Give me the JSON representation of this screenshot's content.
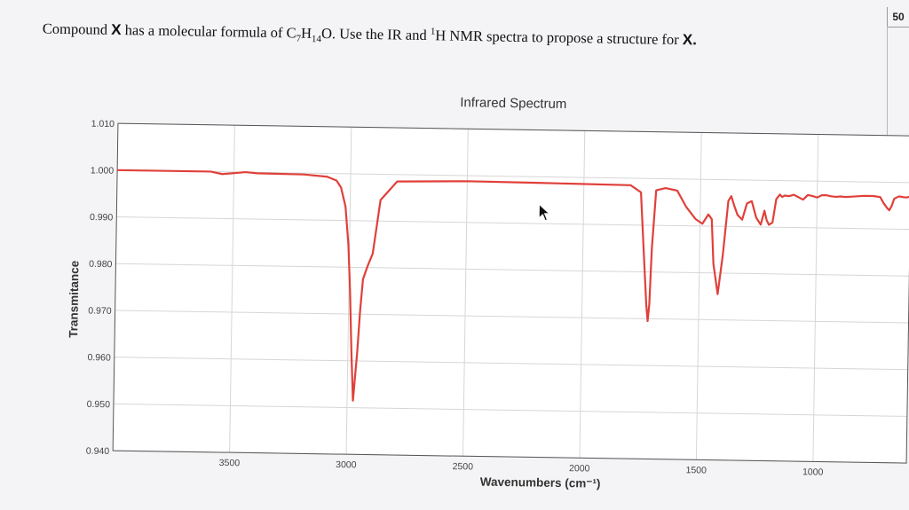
{
  "page_badge": "50",
  "question": {
    "prefix": "Compound ",
    "compound_letter": "X",
    "mid": " has a molecular formula of C",
    "sub1": "7",
    "h": "H",
    "sub2": "14",
    "o_text": "O. Use the IR and ",
    "sup": "1",
    "rest": "H NMR spectra to propose a structure for ",
    "end_letter": "X",
    "period": "."
  },
  "chart_data": {
    "type": "line",
    "title": "Infrared Spectrum",
    "xlabel": "Wavenumbers (cm⁻¹)",
    "ylabel": "Transmitance",
    "xlim": [
      4000,
      600
    ],
    "ylim": [
      0.94,
      1.01
    ],
    "x_ticks": [
      3500,
      3000,
      2500,
      2000,
      1500,
      1000
    ],
    "y_ticks": [
      0.94,
      0.95,
      0.96,
      0.97,
      0.98,
      0.99,
      1.0,
      1.01
    ],
    "y_tick_labels": [
      "0.940",
      "0.950",
      "0.960",
      "0.970",
      "0.980",
      "0.990",
      "1.000",
      "1.010"
    ],
    "grid": true,
    "line_color": "#e0403a",
    "series": [
      {
        "x": [
          4000,
          3600,
          3550,
          3450,
          3400,
          3200,
          3100,
          3060,
          3040,
          3020,
          3005,
          2995,
          2985,
          2975,
          2960,
          2950,
          2940,
          2920,
          2900,
          2870,
          2800,
          2500,
          2200,
          1800,
          1755,
          1740,
          1725,
          1718,
          1712,
          1705,
          1690,
          1650,
          1600,
          1560,
          1520,
          1490,
          1465,
          1450,
          1440,
          1420,
          1400,
          1380,
          1368,
          1355,
          1340,
          1320,
          1300,
          1280,
          1260,
          1240,
          1225,
          1215,
          1205,
          1190,
          1175,
          1160,
          1150,
          1140,
          1120,
          1100,
          1080,
          1060,
          1040,
          1020,
          1000,
          980,
          960,
          940,
          920,
          900,
          880,
          850,
          800,
          760,
          730,
          715,
          700,
          690,
          680,
          670,
          650,
          620,
          600
        ],
        "y": [
          1.0,
          1.0,
          0.9995,
          1.0,
          0.9998,
          0.9997,
          0.9993,
          0.9985,
          0.997,
          0.993,
          0.985,
          0.975,
          0.962,
          0.9515,
          0.962,
          0.971,
          0.9775,
          0.9805,
          0.983,
          0.9945,
          0.9985,
          0.9988,
          0.9987,
          0.9985,
          0.997,
          0.985,
          0.973,
          0.9695,
          0.973,
          0.985,
          0.9975,
          0.998,
          0.9975,
          0.994,
          0.9915,
          0.9905,
          0.9925,
          0.9915,
          0.982,
          0.9755,
          0.984,
          0.9955,
          0.9965,
          0.9945,
          0.9925,
          0.9915,
          0.995,
          0.9955,
          0.992,
          0.9905,
          0.9935,
          0.9915,
          0.9905,
          0.991,
          0.996,
          0.997,
          0.9965,
          0.9968,
          0.9967,
          0.997,
          0.9965,
          0.996,
          0.997,
          0.9968,
          0.9965,
          0.997,
          0.997,
          0.9968,
          0.9967,
          0.9968,
          0.9967,
          0.9968,
          0.997,
          0.997,
          0.9968,
          0.9955,
          0.9945,
          0.994,
          0.995,
          0.9965,
          0.997,
          0.9968,
          0.997
        ]
      }
    ]
  }
}
